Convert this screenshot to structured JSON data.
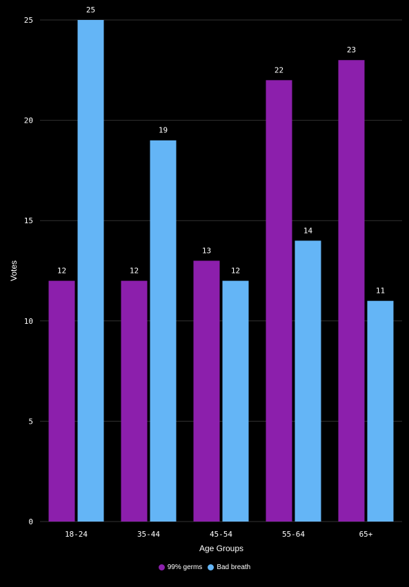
{
  "chart_data": {
    "type": "bar",
    "categories": [
      "18-24",
      "35-44",
      "45-54",
      "55-64",
      "65+"
    ],
    "series": [
      {
        "name": "99% germs",
        "values": [
          12,
          12,
          13,
          22,
          23
        ],
        "color": "#8c1fac"
      },
      {
        "name": "Bad breath",
        "values": [
          25,
          19,
          12,
          14,
          11
        ],
        "color": "#64b5f6"
      }
    ],
    "title": "",
    "xlabel": "Age Groups",
    "ylabel": "Votes",
    "ylim": [
      0,
      25
    ],
    "yticks": [
      0,
      5,
      10,
      15,
      20,
      25
    ],
    "grid": true,
    "legend_position": "bottom-center",
    "background": "#000000",
    "text_color": "#ffffff",
    "grid_color": "#333333"
  }
}
